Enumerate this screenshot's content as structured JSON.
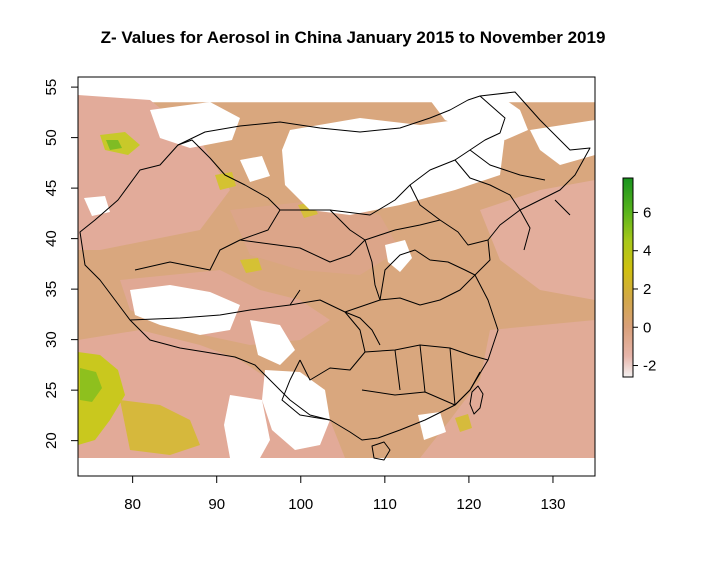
{
  "title": "Z- Values for Aerosol in China January 2015 to November 2019",
  "map": {
    "xlim": [
      73.5,
      135
    ],
    "ylim": [
      16.5,
      56
    ],
    "data_extent": {
      "lon": [
        73.5,
        135
      ],
      "lat": [
        18,
        53.5
      ]
    },
    "x_ticks": [
      {
        "value": 80,
        "label": "80"
      },
      {
        "value": 90,
        "label": "90"
      },
      {
        "value": 100,
        "label": "100"
      },
      {
        "value": 110,
        "label": "110"
      },
      {
        "value": 120,
        "label": "120"
      },
      {
        "value": 130,
        "label": "130"
      }
    ],
    "y_ticks": [
      {
        "value": 20,
        "label": "20"
      },
      {
        "value": 25,
        "label": "25"
      },
      {
        "value": 30,
        "label": "30"
      },
      {
        "value": 35,
        "label": "35"
      },
      {
        "value": 40,
        "label": "40"
      },
      {
        "value": 45,
        "label": "45"
      },
      {
        "value": 50,
        "label": "50"
      },
      {
        "value": 55,
        "label": "55"
      }
    ],
    "colors": {
      "dominant_fill": "#d9a77e",
      "low_fill": "#e2aa98",
      "high_fill": "#c8d020",
      "no_data": "#ffffff",
      "border_line": "#000000"
    }
  },
  "legend": {
    "range": [
      -2.6,
      7.8
    ],
    "ticks": [
      {
        "value": -2,
        "label": "-2"
      },
      {
        "value": 0,
        "label": "0"
      },
      {
        "value": 2,
        "label": "2"
      },
      {
        "value": 4,
        "label": "4"
      },
      {
        "value": 6,
        "label": "6"
      }
    ],
    "color_stops": [
      {
        "value": -2.6,
        "color": "#f4f1f1"
      },
      {
        "value": -1.5,
        "color": "#e7b5aa"
      },
      {
        "value": 0,
        "color": "#d9a07a"
      },
      {
        "value": 1.5,
        "color": "#d2a848"
      },
      {
        "value": 3,
        "color": "#d0c010"
      },
      {
        "value": 4.5,
        "color": "#a8c81a"
      },
      {
        "value": 6,
        "color": "#5ab51c"
      },
      {
        "value": 7.8,
        "color": "#18931e"
      }
    ]
  }
}
